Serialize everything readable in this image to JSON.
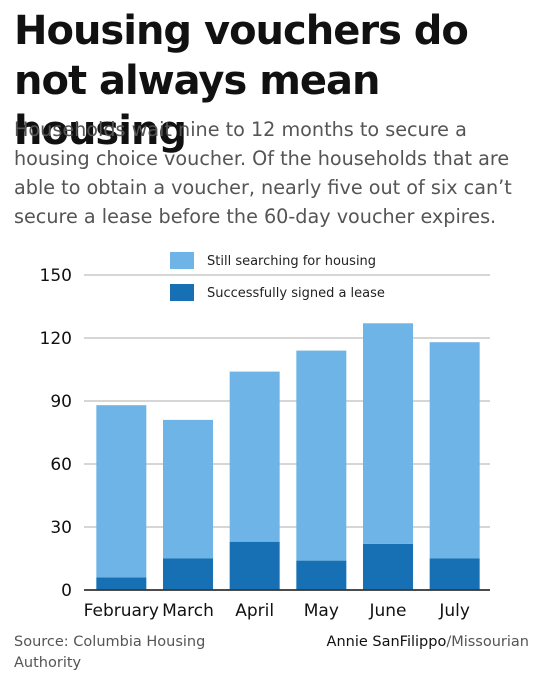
{
  "headline": "Housing vouchers do not always mean housing",
  "subhead": "Households wait nine to 12 months to secure a housing choice voucher. Of the households that are able to obtain a voucher, nearly five out of six can’t secure a lease before the 60-day voucher expires.",
  "footer": {
    "source_label": "Source:",
    "source_name": "Columbia Housing Authority",
    "author": "Annie SanFilippo",
    "outlet": "/Missourian"
  },
  "chart_data": {
    "type": "bar",
    "stacked": true,
    "categories": [
      "February",
      "March",
      "April",
      "May",
      "June",
      "July"
    ],
    "series": [
      {
        "name": "Successfully signed a lease",
        "values": [
          6,
          15,
          23,
          14,
          22,
          15
        ],
        "color": "#1670b3"
      },
      {
        "name": "Still searching for housing",
        "values": [
          82,
          66,
          81,
          100,
          105,
          103
        ],
        "color": "#6eb4e6"
      }
    ],
    "yticks": [
      0,
      30,
      60,
      90,
      120,
      150
    ],
    "ylim": [
      0,
      150
    ],
    "grid": true,
    "legend_position": "top"
  }
}
